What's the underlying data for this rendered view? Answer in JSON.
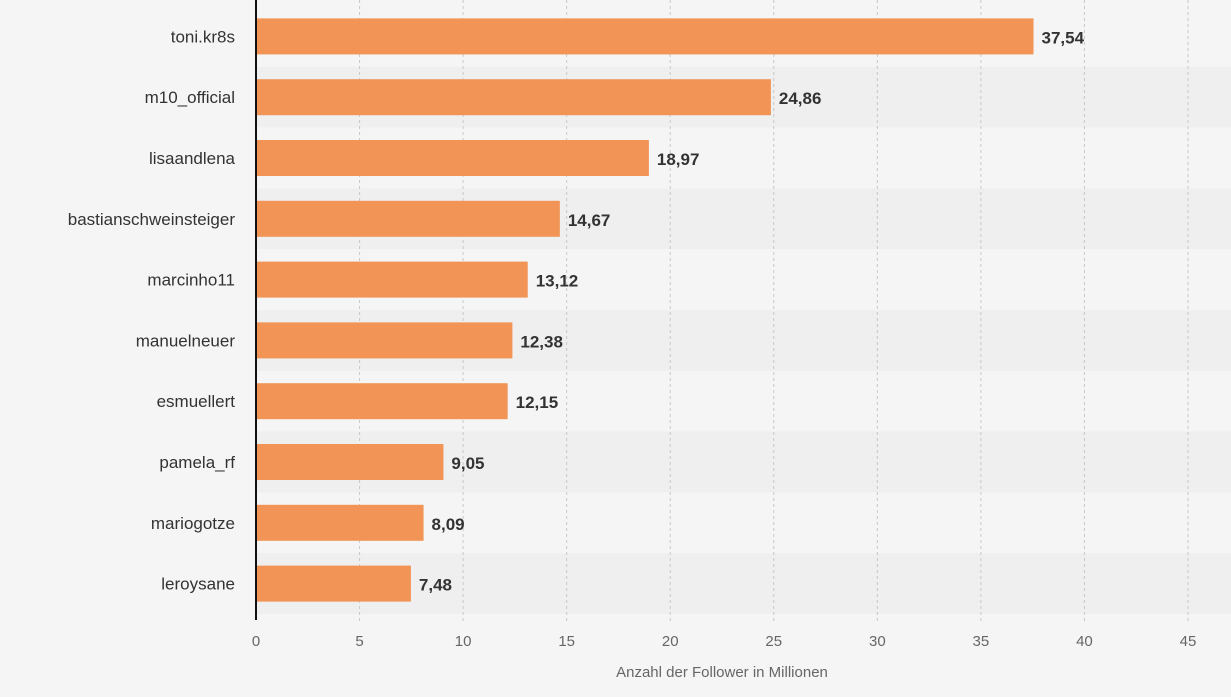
{
  "chart_data": {
    "type": "bar",
    "orientation": "horizontal",
    "categories": [
      "toni.kr8s",
      "m10_official",
      "lisaandlena",
      "bastianschweinsteiger",
      "marcinho11",
      "manuelneuer",
      "esmuellert",
      "pamela_rf",
      "mariogotze",
      "leroysane"
    ],
    "values": [
      37.54,
      24.86,
      18.97,
      14.67,
      13.12,
      12.38,
      12.15,
      9.05,
      8.09,
      7.48
    ],
    "value_labels": [
      "37,54",
      "24,86",
      "18,97",
      "14,67",
      "13,12",
      "12,38",
      "12,15",
      "9,05",
      "8,09",
      "7,48"
    ],
    "xlim": [
      0,
      45
    ],
    "xticks": [
      0,
      5,
      10,
      15,
      20,
      25,
      30,
      35,
      40,
      45
    ],
    "xtick_labels": [
      "0",
      "5",
      "10",
      "15",
      "20",
      "25",
      "30",
      "35",
      "40",
      "45"
    ],
    "xlabel": "Anzahl der Follower in Millionen",
    "ylabel": "",
    "title": "",
    "grid": "vertical-dashed",
    "bar_color": "#f19455",
    "row_band_color": "#efefef",
    "background_color": "#f5f5f5"
  }
}
